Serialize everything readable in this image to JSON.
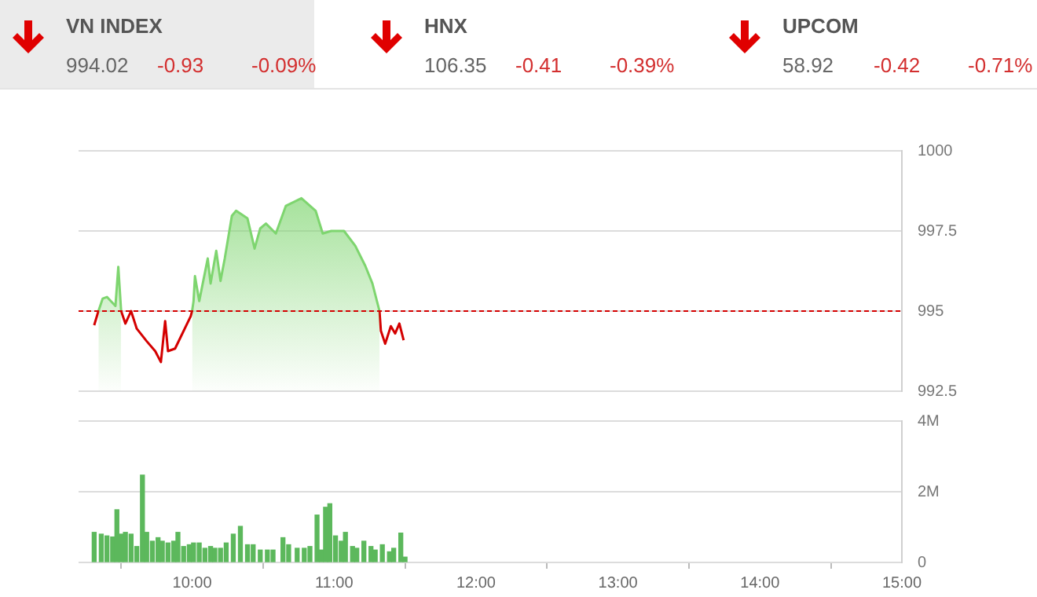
{
  "chart_data": [
    {
      "type": "other",
      "annotations": [
        "VN INDEX",
        "994.02",
        "-0.93",
        "-0.09%",
        "HNX",
        "106.35",
        "-0.41",
        "-0.39%",
        "UPCOM",
        "58.92",
        "-0.42",
        "-0.71%"
      ]
    },
    {
      "type": "area",
      "xlim": [
        9.2,
        15
      ],
      "ylim": [
        992.5,
        1000
      ],
      "yticks": [
        992.5,
        995,
        997.5,
        1000
      ],
      "grid": "y",
      "tick_labels": "y",
      "series": [
        {
          "type": "area",
          "color": "#7ed56f",
          "x": [
            9.34,
            9.37,
            9.4,
            9.46,
            9.48,
            9.5,
            9.53,
            10.0,
            10.01,
            10.02,
            10.05,
            10.11,
            10.13,
            10.17,
            10.2,
            10.23,
            10.28,
            10.31,
            10.39,
            10.44,
            10.48,
            10.52,
            10.59,
            10.66,
            10.77,
            10.87,
            10.92,
            10.98,
            11.07,
            11.15,
            11.22,
            11.27,
            11.32
          ],
          "values": [
            995,
            995.39,
            995.44,
            995.16,
            996.38,
            995,
            null,
            995,
            995.31,
            996.09,
            995.31,
            996.64,
            995.86,
            996.88,
            995.94,
            996.64,
            997.97,
            998.13,
            997.89,
            996.95,
            997.58,
            997.73,
            997.42,
            998.28,
            998.52,
            998.13,
            997.42,
            997.5,
            997.5,
            997.03,
            996.41,
            995.86,
            995
          ]
        },
        {
          "type": "line",
          "color": "#d40000",
          "x": [
            9.31,
            9.34,
            9.4,
            9.5,
            9.53,
            9.57,
            9.61,
            9.68,
            9.74,
            9.78,
            9.81,
            9.83,
            9.88,
            9.99,
            10.0,
            10.01,
            11.32,
            11.33,
            11.36,
            11.4,
            11.43,
            11.46,
            11.49
          ],
          "values": [
            994.56,
            995,
            null,
            995,
            994.61,
            995,
            994.45,
            994.06,
            993.75,
            993.41,
            994.69,
            993.75,
            993.83,
            994.84,
            995,
            null,
            995,
            994.38,
            993.98,
            994.53,
            994.3,
            994.61,
            994.09
          ]
        }
      ],
      "ref_lines": [
        {
          "axis": "y",
          "value": 995,
          "color": "#d40000",
          "line_style": "dashed"
        }
      ]
    },
    {
      "type": "bar",
      "xlim": [
        9.2,
        15
      ],
      "xticks": [
        {
          "value": 10,
          "label": "10:00"
        },
        {
          "value": 11,
          "label": "11:00"
        },
        {
          "value": 12,
          "label": "12:00"
        },
        {
          "value": 13,
          "label": "13:00"
        },
        {
          "value": 14,
          "label": "14:00"
        },
        {
          "value": 15,
          "label": "15:00"
        }
      ],
      "ylim": [
        0,
        4000000
      ],
      "yticks": [
        {
          "value": 0,
          "label": "0"
        },
        {
          "value": 2000000,
          "label": "2M"
        },
        {
          "value": 4000000,
          "label": "4M"
        }
      ],
      "grid": "y",
      "color": "#5cb85c",
      "x": [
        9.31,
        9.36,
        9.4,
        9.44,
        9.47,
        9.5,
        9.53,
        9.57,
        9.61,
        9.65,
        9.68,
        9.72,
        9.76,
        9.79,
        9.83,
        9.87,
        9.9,
        9.94,
        9.98,
        10.01,
        10.05,
        10.09,
        10.13,
        10.16,
        10.2,
        10.24,
        10.29,
        10.34,
        10.39,
        10.43,
        10.48,
        10.53,
        10.57,
        10.64,
        10.68,
        10.74,
        10.79,
        10.83,
        10.88,
        10.91,
        10.94,
        10.97,
        11.01,
        11.05,
        11.08,
        11.13,
        11.16,
        11.21,
        11.26,
        11.29,
        11.34,
        11.39,
        11.42,
        11.47,
        11.5
      ],
      "values": [
        850000,
        800000,
        750000,
        720000,
        1490000,
        800000,
        850000,
        800000,
        450000,
        2470000,
        850000,
        600000,
        700000,
        600000,
        550000,
        600000,
        850000,
        450000,
        500000,
        550000,
        550000,
        400000,
        450000,
        400000,
        400000,
        550000,
        800000,
        1020000,
        500000,
        500000,
        350000,
        350000,
        350000,
        700000,
        500000,
        400000,
        400000,
        450000,
        1340000,
        350000,
        1560000,
        1660000,
        750000,
        600000,
        850000,
        450000,
        400000,
        600000,
        450000,
        350000,
        500000,
        300000,
        400000,
        830000,
        150000
      ]
    }
  ]
}
